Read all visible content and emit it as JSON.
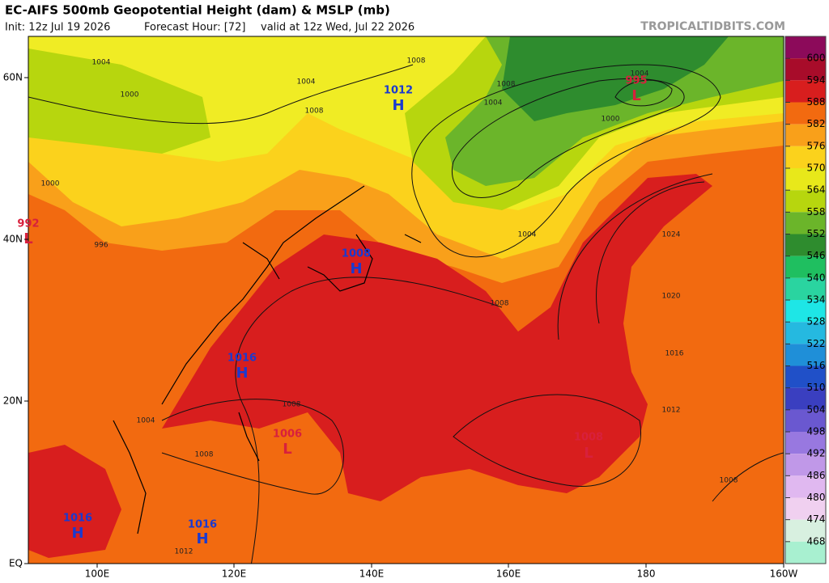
{
  "header": {
    "title": "EC-AIFS 500mb Geopotential Height (dam) & MSLP (mb)",
    "init": "Init: 12z Jul 19 2026",
    "forecast_hour": "Forecast Hour: [72]",
    "valid": "valid at 12z Wed, Jul 22 2026",
    "watermark": "TROPICALTIDBITS.COM"
  },
  "map": {
    "lat_labels": [
      "60N",
      "40N",
      "20N",
      "EQ"
    ],
    "lon_labels": [
      "100E",
      "120E",
      "140E",
      "160E",
      "180",
      "160W"
    ],
    "pressure_centers": [
      {
        "type": "H",
        "value": "1012"
      },
      {
        "type": "L",
        "value": "995"
      },
      {
        "type": "L",
        "value": "992"
      },
      {
        "type": "H",
        "value": "1008"
      },
      {
        "type": "H",
        "value": "1016"
      },
      {
        "type": "L",
        "value": "1006"
      },
      {
        "type": "L",
        "value": "1008"
      },
      {
        "type": "H",
        "value": "1016"
      },
      {
        "type": "H",
        "value": "1016"
      }
    ],
    "isobar_labels": [
      "1004",
      "1000",
      "1004",
      "1008",
      "1008",
      "1004",
      "1004",
      "1000",
      "1004",
      "1024",
      "1020",
      "1016",
      "1012",
      "1008",
      "1008",
      "1008",
      "1008",
      "1004",
      "1012",
      "1000",
      "996",
      "1008"
    ]
  },
  "colorbar": {
    "labels": [
      "600",
      "594",
      "588",
      "582",
      "576",
      "570",
      "564",
      "558",
      "552",
      "546",
      "540",
      "534",
      "528",
      "522",
      "516",
      "510",
      "504",
      "498",
      "492",
      "486",
      "480",
      "474",
      "468"
    ]
  }
}
